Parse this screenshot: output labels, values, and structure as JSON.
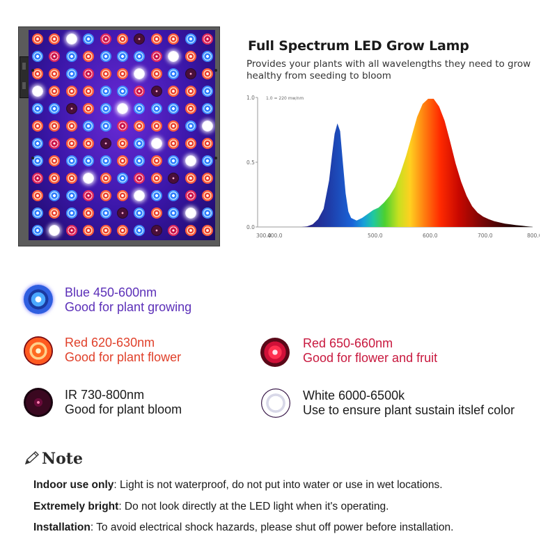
{
  "spectrum": {
    "title": "Full Spectrum LED Grow Lamp",
    "subtitle": "Provides your plants with all wavelengths they need to grow healthy from seeding to bloom"
  },
  "chart_data": {
    "type": "area",
    "title": "",
    "annotation": "1.0 = 220 mw/nm",
    "xlabel": "",
    "ylabel": "",
    "xlim": [
      300,
      800
    ],
    "ylim": [
      0,
      1.0
    ],
    "x_tick_labels": [
      "300.0",
      "400.0",
      "500.0",
      "600.0",
      "700.0",
      "800.0"
    ],
    "y_tick_labels": [
      "0.0",
      "0.5",
      "1.0"
    ],
    "grid": false,
    "fill": "wavelength-colored gradient",
    "series": [
      {
        "x": [
          380,
          390,
          400,
          410,
          420,
          430,
          435,
          440,
          445,
          450,
          455,
          460,
          465,
          470,
          480,
          490,
          500,
          510,
          520,
          530,
          540,
          550,
          560,
          570,
          580,
          590,
          600,
          610,
          620,
          630,
          640,
          650,
          660,
          670,
          680,
          690,
          700,
          710,
          720,
          730,
          740,
          750,
          760,
          770,
          780,
          790,
          800
        ],
        "y": [
          0.0,
          0.005,
          0.02,
          0.06,
          0.14,
          0.36,
          0.55,
          0.72,
          0.8,
          0.74,
          0.5,
          0.26,
          0.12,
          0.07,
          0.05,
          0.07,
          0.1,
          0.13,
          0.15,
          0.19,
          0.24,
          0.31,
          0.42,
          0.55,
          0.7,
          0.85,
          0.95,
          0.99,
          0.99,
          0.93,
          0.82,
          0.66,
          0.49,
          0.35,
          0.24,
          0.16,
          0.11,
          0.08,
          0.06,
          0.045,
          0.035,
          0.025,
          0.02,
          0.014,
          0.01,
          0.005,
          0.0
        ]
      }
    ]
  },
  "legend": {
    "blue": {
      "name": "Blue 450-600nm",
      "desc": "Good for plant growing",
      "color": "#5b2fb8"
    },
    "red": {
      "name": "Red 620-630nm",
      "desc": "Good for plant flower",
      "color": "#e0402a"
    },
    "deep_red": {
      "name": "Red 650-660nm",
      "desc": "Good for flower and fruit",
      "color": "#c8183e"
    },
    "ir": {
      "name": "IR 730-800nm",
      "desc": "Good for plant bloom",
      "color": "#1a1a1a"
    },
    "white": {
      "name": "White 6000-6500k",
      "desc": "Use to ensure plant sustain itslef color",
      "color": "#1a1a1a"
    }
  },
  "note": {
    "heading": "Note",
    "items": [
      {
        "label": "Indoor use only",
        "text": ": Light is not waterproof, do not put into water or use in wet locations."
      },
      {
        "label": "Extremely bright",
        "text": ": Do not look directly at the LED light when it's operating."
      },
      {
        "label": "Installation",
        "text": ": To avoid electrical shock hazards, please shut off power before installation."
      }
    ]
  }
}
